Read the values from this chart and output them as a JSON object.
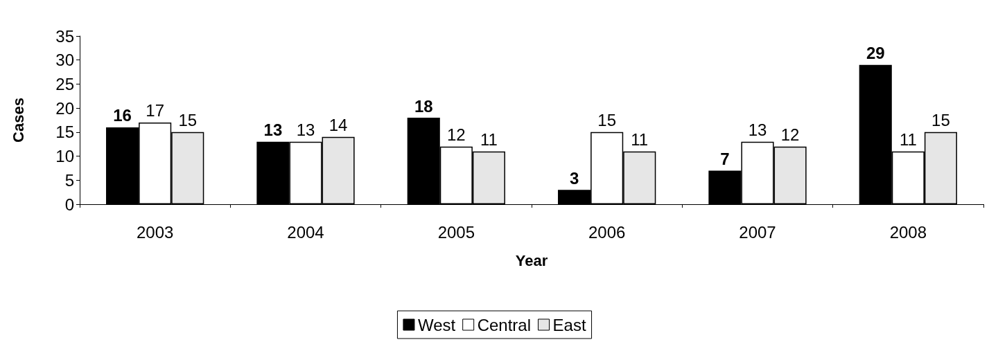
{
  "chart_data": {
    "type": "bar",
    "xlabel": "Year",
    "ylabel": "Cases",
    "categories": [
      "2003",
      "2004",
      "2005",
      "2006",
      "2007",
      "2008"
    ],
    "series": [
      {
        "name": "West",
        "color": "#000000",
        "values": [
          16,
          13,
          18,
          3,
          7,
          29
        ]
      },
      {
        "name": "Central",
        "color": "#ffffff",
        "values": [
          17,
          13,
          12,
          15,
          13,
          11
        ]
      },
      {
        "name": "East",
        "color": "#e6e6e6",
        "values": [
          15,
          14,
          11,
          11,
          12,
          15
        ]
      }
    ],
    "ylim": [
      0,
      35
    ],
    "yticks": [
      0,
      5,
      10,
      15,
      20,
      25,
      30,
      35
    ],
    "grid": false,
    "legend": "bottom",
    "data_labels": true
  }
}
